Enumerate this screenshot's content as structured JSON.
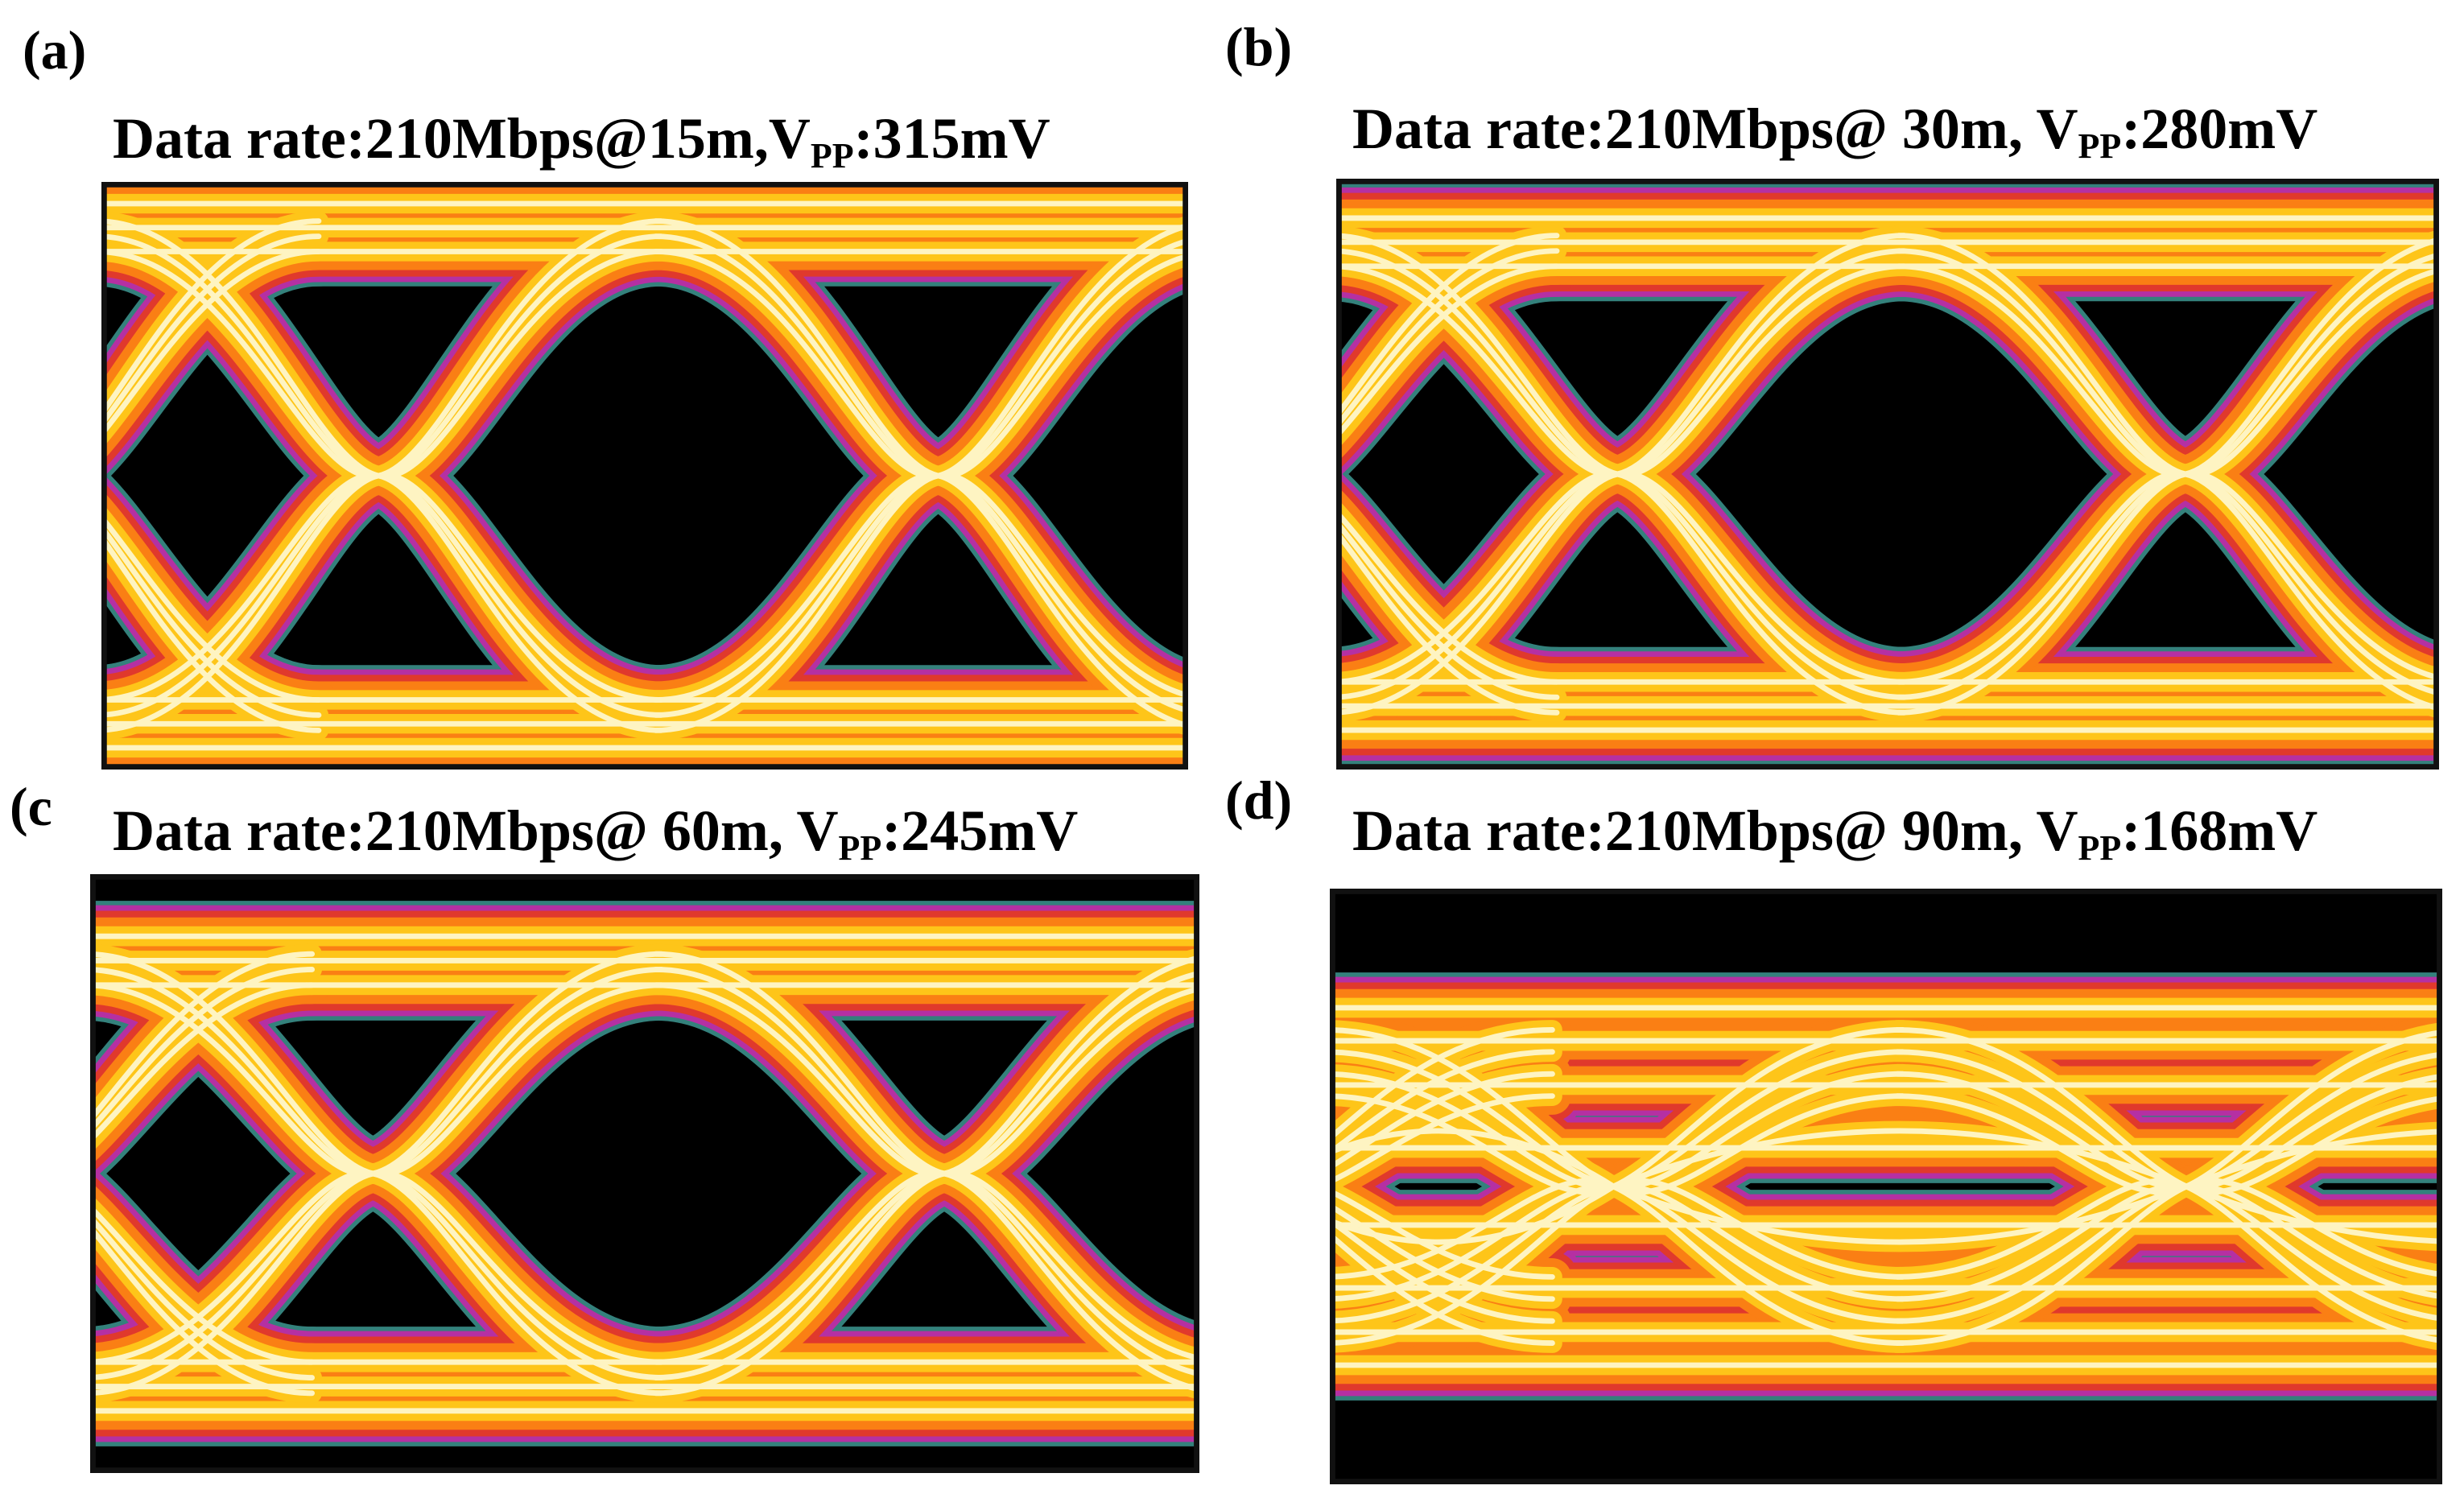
{
  "panels": [
    {
      "label": "(a)",
      "title": {
        "prefix": "Data rate:210Mbps@15m,V",
        "sub": "PP",
        "suffix": ":315mV"
      },
      "eye_level": 0.9
    },
    {
      "label": "(b)",
      "title": {
        "prefix": "Data rate:210Mbps@ 30m, V",
        "sub": "PP",
        "suffix": ":280mV"
      },
      "eye_level": 0.82
    },
    {
      "label": "(c",
      "title": {
        "prefix": "Data rate:210Mbps@ 60m, V",
        "sub": "PP",
        "suffix": ":245mV"
      },
      "eye_level": 0.72
    },
    {
      "label": "(d)",
      "title": {
        "prefix": "Data rate:210Mbps@ 90m, V",
        "sub": "PP",
        "suffix": ":168mV"
      },
      "eye_level": 0.36
    }
  ],
  "colors": {
    "background": "#000000",
    "trace_core": "#fffde0",
    "trace_hot": "#ffd21a",
    "trace_mid": "#ff8c10",
    "trace_outer": "#e83b18",
    "trace_edge": "#cc22aa",
    "trace_rim": "#3a8f8a"
  }
}
